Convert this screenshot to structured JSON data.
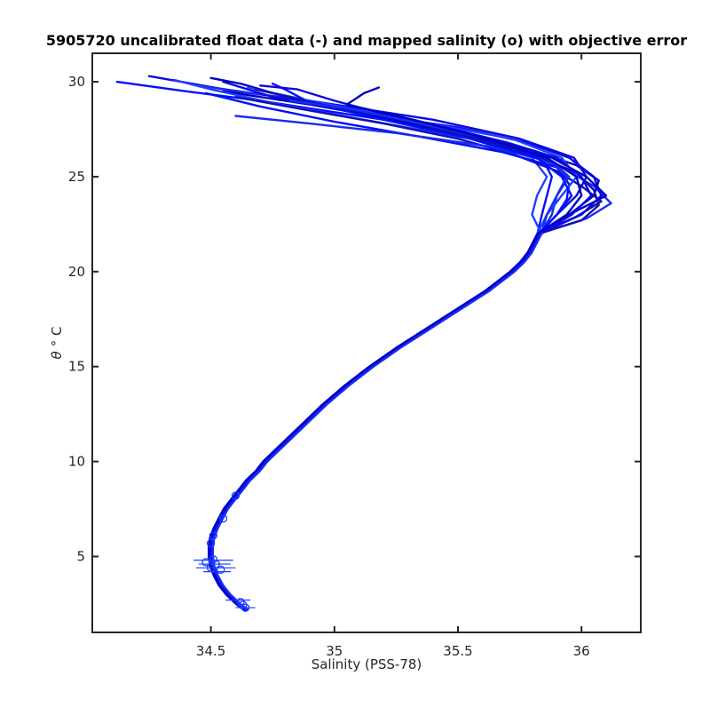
{
  "chart_data": {
    "type": "line",
    "title": "5905720 uncalibrated float data (-) and mapped salinity (o) with objective error",
    "xlabel": "Salinity (PSS-78)",
    "ylabel_symbol": "θ",
    "ylabel_unit": "° C",
    "xlim": [
      34.02,
      36.24
    ],
    "ylim": [
      1,
      31.5
    ],
    "x_ticks": [
      34.5,
      35,
      35.5,
      36
    ],
    "x_tick_labels": [
      "34.5",
      "35",
      "35.5",
      "36"
    ],
    "y_ticks": [
      5,
      10,
      15,
      20,
      25,
      30
    ],
    "y_tick_labels": [
      "5",
      "10",
      "15",
      "20",
      "25",
      "30"
    ],
    "grid": false,
    "legend": "none",
    "colors": {
      "profile_palette": [
        "#0010ff",
        "#0a0ae0",
        "#1a2cf0",
        "#0000c8",
        "#2040ff",
        "#1010b0"
      ],
      "marker": "#1a3cff",
      "frame": "#262626"
    },
    "deep_profile": {
      "theta": [
        2.2,
        2.5,
        3.0,
        3.5,
        4.0,
        4.5,
        5.0,
        5.5,
        6.0,
        6.5,
        7.0,
        7.5,
        8.0,
        8.5,
        9.0,
        9.5,
        10.0,
        11.0,
        12.0,
        13.0,
        14.0,
        15.0,
        16.0,
        17.0,
        18.0,
        19.0,
        20.0,
        20.5,
        21.0,
        21.5,
        22.0
      ],
      "salinity": [
        34.64,
        34.61,
        34.57,
        34.54,
        34.52,
        34.505,
        34.5,
        34.5,
        34.505,
        34.52,
        34.54,
        34.56,
        34.59,
        34.62,
        34.65,
        34.69,
        34.72,
        34.8,
        34.88,
        34.96,
        35.05,
        35.15,
        35.26,
        35.38,
        35.5,
        35.62,
        35.72,
        35.76,
        35.79,
        35.81,
        35.83
      ]
    },
    "upper_profiles": [
      {
        "theta": [
          22.0,
          23.0,
          24.0,
          25.0,
          26.0,
          27.0,
          28.0,
          29.0,
          29.5,
          30.0
        ],
        "salinity": [
          35.83,
          35.84,
          35.86,
          35.88,
          35.84,
          35.6,
          35.2,
          34.7,
          34.4,
          34.12
        ]
      },
      {
        "theta": [
          22.0,
          23.0,
          24.0,
          25.0,
          26.0,
          27.0,
          28.0,
          29.0,
          29.5,
          30.3
        ],
        "salinity": [
          35.85,
          35.9,
          35.98,
          36.02,
          35.97,
          35.75,
          35.4,
          34.9,
          34.6,
          34.25
        ]
      },
      {
        "theta": [
          22.0,
          22.8,
          23.6,
          24.5,
          25.5,
          26.5,
          27.5,
          28.5,
          29.3,
          29.8
        ],
        "salinity": [
          35.9,
          36.02,
          36.12,
          36.05,
          35.92,
          35.7,
          35.45,
          35.05,
          34.72,
          34.45
        ]
      },
      {
        "theta": [
          22.0,
          23.0,
          24.0,
          24.8,
          25.6,
          26.4,
          27.2,
          28.0,
          28.8,
          29.5
        ],
        "salinity": [
          35.86,
          35.95,
          36.05,
          36.07,
          35.98,
          35.8,
          35.55,
          35.25,
          34.9,
          34.55
        ]
      },
      {
        "theta": [
          22.0,
          23.0,
          24.0,
          25.0,
          26.0,
          27.0,
          28.0,
          28.8,
          29.6,
          30.1
        ],
        "salinity": [
          35.82,
          35.8,
          35.82,
          35.86,
          35.8,
          35.55,
          35.12,
          34.78,
          34.5,
          34.35
        ]
      },
      {
        "theta": [
          22.0,
          22.9,
          23.7,
          24.5,
          25.3,
          26.2,
          27.0,
          27.8,
          28.6,
          29.2
        ],
        "salinity": [
          35.87,
          35.98,
          36.08,
          36.0,
          35.9,
          35.72,
          35.5,
          35.2,
          34.85,
          34.6
        ]
      },
      {
        "theta": [
          22.0,
          23.0,
          23.8,
          24.6,
          25.5,
          26.3,
          27.1,
          27.9,
          28.7,
          29.4
        ],
        "salinity": [
          35.84,
          35.9,
          35.94,
          35.95,
          35.9,
          35.68,
          35.35,
          35.0,
          34.7,
          34.48
        ]
      },
      {
        "theta": [
          22.0,
          23.0,
          24.0,
          25.0,
          26.0,
          26.8,
          27.6,
          28.4,
          29.2,
          30.0
        ],
        "salinity": [
          35.88,
          36.0,
          36.08,
          36.05,
          35.95,
          35.78,
          35.5,
          35.08,
          34.75,
          34.55
        ]
      },
      {
        "theta": [
          22.0,
          23.0,
          24.0,
          25.0,
          25.8,
          26.6,
          27.3,
          27.8,
          28.2
        ],
        "salinity": [
          35.84,
          35.88,
          35.9,
          35.95,
          35.88,
          35.62,
          35.25,
          34.9,
          34.6
        ]
      },
      {
        "theta": [
          22.0,
          23.0,
          24.0,
          25.0,
          26.0,
          27.0,
          27.8,
          28.6,
          29.3,
          29.9,
          30.2
        ],
        "salinity": [
          35.86,
          35.95,
          36.1,
          36.02,
          35.88,
          35.6,
          35.3,
          35.0,
          34.78,
          34.62,
          34.5
        ]
      },
      {
        "theta": [
          22.0,
          23.0,
          24.0,
          25.0,
          26.0,
          27.0,
          28.0,
          29.0,
          29.7
        ],
        "salinity": [
          35.83,
          35.86,
          35.92,
          35.98,
          35.92,
          35.72,
          35.3,
          34.9,
          34.65
        ]
      },
      {
        "theta": [
          22.0,
          22.7,
          23.5,
          24.3,
          25.2,
          26.1,
          27.0,
          27.9,
          28.8,
          29.6
        ],
        "salinity": [
          35.88,
          36.0,
          36.07,
          36.05,
          35.98,
          35.82,
          35.58,
          35.3,
          34.95,
          34.68
        ]
      },
      {
        "theta": [
          22.0,
          23.0,
          24.0,
          25.0,
          26.0,
          27.0,
          28.0,
          28.9,
          29.6,
          29.9
        ],
        "salinity": [
          35.85,
          35.9,
          35.96,
          35.92,
          35.82,
          35.55,
          35.2,
          34.9,
          34.8,
          34.75
        ]
      },
      {
        "theta": [
          22.0,
          23.0,
          24.0,
          25.0,
          26.0,
          26.8,
          27.6,
          28.3,
          29.0,
          29.6,
          29.8
        ],
        "salinity": [
          35.86,
          35.96,
          36.04,
          36.0,
          35.9,
          35.7,
          35.45,
          35.2,
          35.0,
          34.85,
          34.7
        ]
      },
      {
        "theta": [
          22.0,
          23.0,
          24.0,
          25.0,
          26.0,
          27.0,
          28.0,
          28.6,
          29.0
        ],
        "salinity": [
          35.84,
          35.86,
          35.9,
          35.94,
          35.86,
          35.62,
          35.28,
          35.05,
          34.82
        ]
      },
      {
        "theta": [
          22.0,
          23.0,
          24.0,
          25.0,
          26.0,
          27.0,
          28.0,
          28.8,
          29.4,
          29.7
        ],
        "salinity": [
          35.86,
          35.94,
          36.0,
          35.98,
          35.86,
          35.62,
          35.32,
          35.05,
          35.12,
          35.18
        ]
      }
    ],
    "mapped_points": [
      {
        "salinity": 34.48,
        "theta": 4.7
      },
      {
        "salinity": 34.52,
        "theta": 4.6
      },
      {
        "salinity": 34.5,
        "theta": 4.4
      },
      {
        "salinity": 34.54,
        "theta": 4.3
      },
      {
        "salinity": 34.51,
        "theta": 4.85
      },
      {
        "salinity": 34.5,
        "theta": 5.7
      },
      {
        "salinity": 34.51,
        "theta": 6.1
      },
      {
        "salinity": 34.55,
        "theta": 7.0
      },
      {
        "salinity": 34.6,
        "theta": 8.2
      },
      {
        "salinity": 34.62,
        "theta": 2.6
      },
      {
        "salinity": 34.64,
        "theta": 2.3
      },
      {
        "salinity": 34.63,
        "theta": 2.45
      }
    ],
    "error_bars": [
      {
        "theta": 4.8,
        "salinity_min": 34.43,
        "salinity_max": 34.59
      },
      {
        "theta": 4.6,
        "salinity_min": 34.45,
        "salinity_max": 34.58
      },
      {
        "theta": 4.4,
        "salinity_min": 34.44,
        "salinity_max": 34.6
      },
      {
        "theta": 4.2,
        "salinity_min": 34.47,
        "salinity_max": 34.58
      },
      {
        "theta": 2.7,
        "salinity_min": 34.56,
        "salinity_max": 34.66
      },
      {
        "theta": 2.3,
        "salinity_min": 34.6,
        "salinity_max": 34.68
      }
    ]
  }
}
